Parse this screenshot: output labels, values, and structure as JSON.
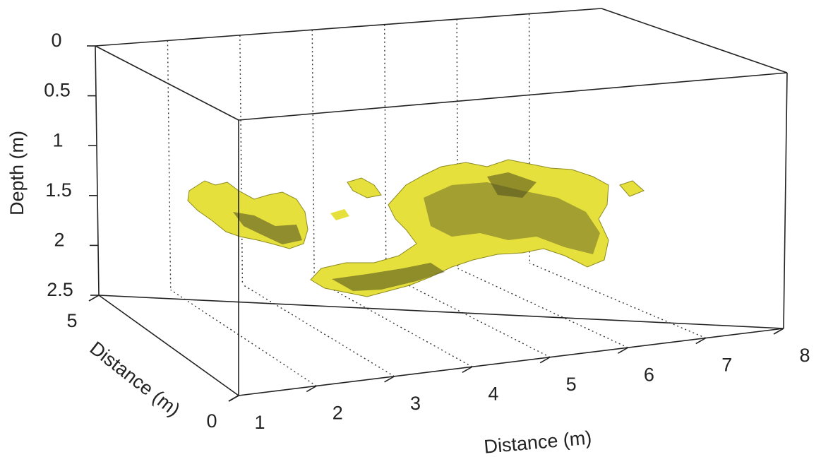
{
  "chart_data": {
    "type": "isosurface3d",
    "xlabel": "Distance (m)",
    "ylabel": "Distance (m)",
    "zlabel": "Depth (m)",
    "xlim": [
      1,
      8
    ],
    "xticks": [
      1,
      2,
      3,
      4,
      5,
      6,
      7,
      8
    ],
    "ylim": [
      0,
      5
    ],
    "yticks": [
      0,
      5
    ],
    "zlim": [
      0,
      2.5
    ],
    "zticks": [
      0,
      0.5,
      1,
      1.5,
      2,
      2.5
    ],
    "color": "#e6e03c"
  }
}
